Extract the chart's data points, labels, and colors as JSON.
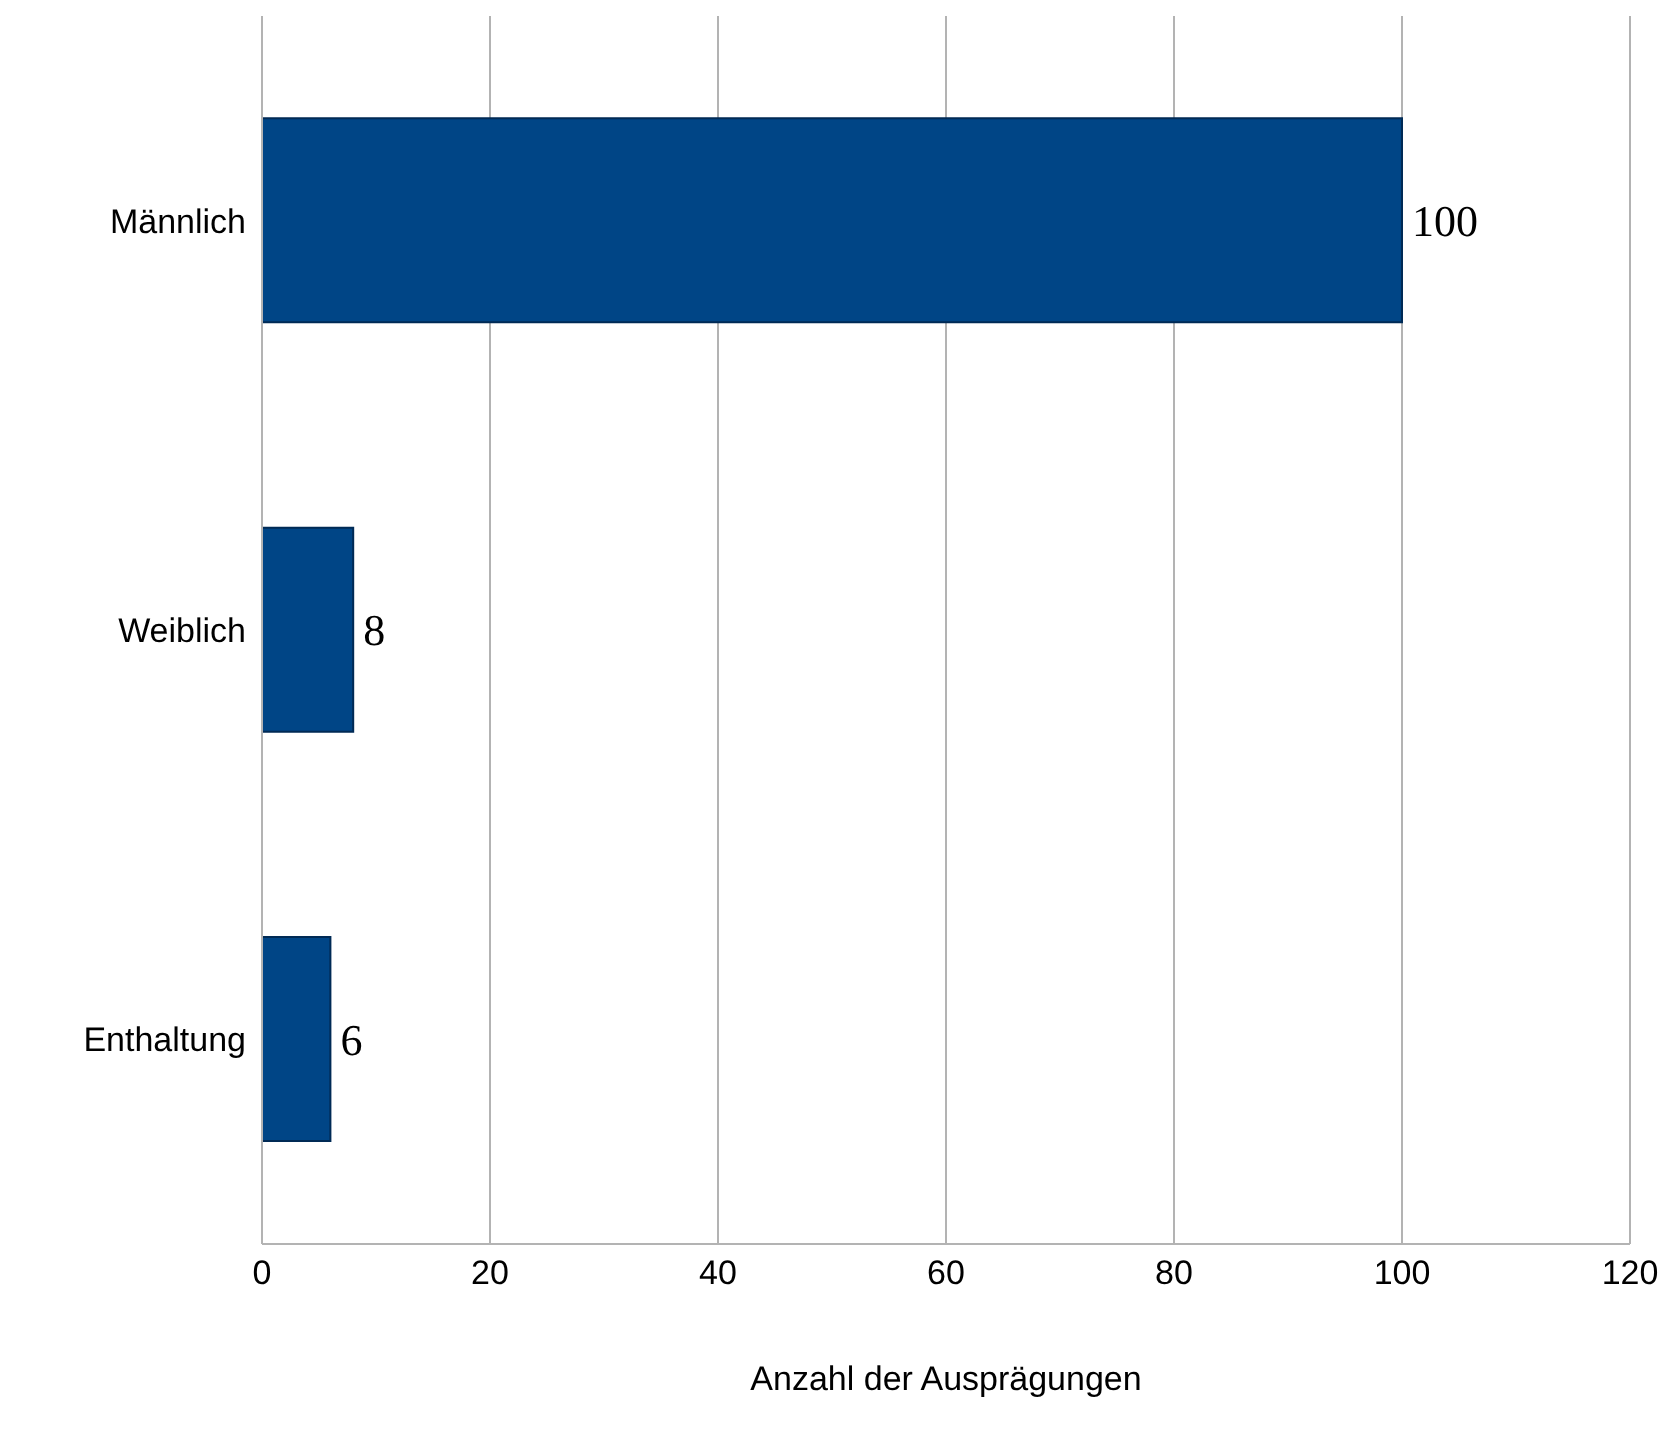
{
  "chart_data": {
    "type": "bar",
    "orientation": "horizontal",
    "xlabel": "Anzahl der Ausprägungen",
    "categories": [
      "Männlich",
      "Weiblich",
      "Enthaltung"
    ],
    "values": [
      100,
      8,
      6
    ],
    "color": "#004586",
    "xlim": [
      0,
      120
    ],
    "xticks": [
      0,
      20,
      40,
      60,
      80,
      100,
      120
    ],
    "grid": "x",
    "data_labels": true
  }
}
